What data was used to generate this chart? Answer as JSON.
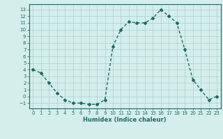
{
  "x": [
    0,
    1,
    2,
    3,
    4,
    5,
    6,
    7,
    8,
    9,
    10,
    11,
    12,
    13,
    14,
    15,
    16,
    17,
    18,
    19,
    20,
    21,
    22,
    23
  ],
  "y": [
    4,
    3.5,
    2,
    0.5,
    -0.5,
    -1,
    -1,
    -1.2,
    -1.2,
    -0.5,
    7.5,
    10,
    11.2,
    11,
    11,
    11.7,
    13,
    12,
    11,
    7,
    2.5,
    1,
    -0.5,
    0
  ],
  "xlim": [
    -0.5,
    23.5
  ],
  "ylim": [
    -1.8,
    13.8
  ],
  "yticks": [
    -1,
    0,
    1,
    2,
    3,
    4,
    5,
    6,
    7,
    8,
    9,
    10,
    11,
    12,
    13
  ],
  "xticks": [
    0,
    1,
    2,
    3,
    4,
    5,
    6,
    7,
    8,
    9,
    10,
    11,
    12,
    13,
    14,
    15,
    16,
    17,
    18,
    19,
    20,
    21,
    22,
    23
  ],
  "xlabel": "Humidex (Indice chaleur)",
  "line_color": "#1a6e5a",
  "marker": "D",
  "marker_size": 2.0,
  "bg_color": "#d4eeec",
  "grid_color": "#a8d0cc",
  "tick_color": "#1a6e5a",
  "label_color": "#1a6e5a",
  "line_width": 1.0
}
